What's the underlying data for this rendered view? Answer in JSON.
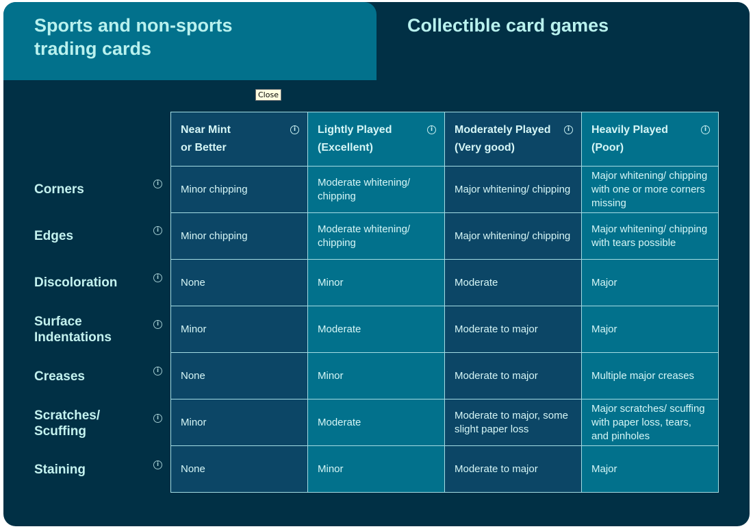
{
  "tabs": [
    {
      "label": "Sports and non-sports trading cards",
      "active": false
    },
    {
      "label": "Collectible card games",
      "active": true
    }
  ],
  "tooltip": "Close",
  "columns": [
    {
      "line1": "Near Mint",
      "line2": "or Better"
    },
    {
      "line1": "Lightly Played",
      "line2": "(Excellent)"
    },
    {
      "line1": "Moderately Played",
      "line2": "(Very good)"
    },
    {
      "line1": "Heavily Played",
      "line2": "(Poor)"
    }
  ],
  "rows": [
    {
      "label": "Corners",
      "cells": [
        "Minor chipping",
        "Moderate whitening/ chipping",
        "Major whitening/ chipping",
        "Major whitening/ chipping with one or more corners missing"
      ]
    },
    {
      "label": "Edges",
      "cells": [
        "Minor chipping",
        "Moderate whitening/ chipping",
        "Major whitening/ chipping",
        "Major whitening/ chipping with tears possible"
      ]
    },
    {
      "label": "Discoloration",
      "cells": [
        "None",
        "Minor",
        "Moderate",
        "Major"
      ]
    },
    {
      "label": "Surface Indentations",
      "cells": [
        "Minor",
        "Moderate",
        "Moderate to major",
        "Major"
      ]
    },
    {
      "label": "Creases",
      "cells": [
        "None",
        "Minor",
        "Moderate to major",
        "Multiple major creases"
      ]
    },
    {
      "label": "Scratches/ Scuffing",
      "cells": [
        "Minor",
        "Moderate",
        "Moderate to major, some slight paper loss",
        "Major scratches/ scuffing with paper loss, tears, and pinholes"
      ]
    },
    {
      "label": "Staining",
      "cells": [
        "None",
        "Minor",
        "Moderate to major",
        "Major"
      ]
    }
  ],
  "colors": {
    "background": "#013045",
    "accent": "#02718c",
    "column_dark": "#0c4666",
    "text": "#c4f2ef"
  }
}
